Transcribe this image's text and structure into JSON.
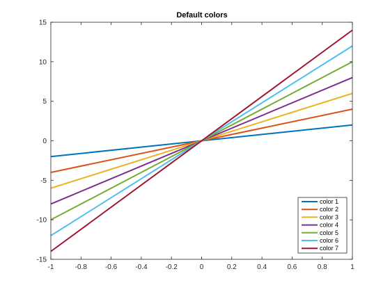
{
  "chart_data": {
    "type": "line",
    "title": "Default colors",
    "xlabel": "",
    "ylabel": "",
    "xlim": [
      -1,
      1
    ],
    "ylim": [
      -15,
      15
    ],
    "x_ticks": [
      -1,
      -0.8,
      -0.6,
      -0.4,
      -0.2,
      0,
      0.2,
      0.4,
      0.6,
      0.8,
      1
    ],
    "x_tick_labels": [
      "-1",
      "-0.8",
      "-0.6",
      "-0.4",
      "-0.2",
      "0",
      "0.2",
      "0.4",
      "0.6",
      "0.8",
      "1"
    ],
    "y_ticks": [
      -15,
      -10,
      -5,
      0,
      5,
      10,
      15
    ],
    "y_tick_labels": [
      "-15",
      "-10",
      "-5",
      "0",
      "5",
      "10",
      "15"
    ],
    "grid": false,
    "legend_position": "bottom-right",
    "x": [
      -1,
      1
    ],
    "series": [
      {
        "name": "color 1",
        "color": "#0072BD",
        "values": [
          -2,
          2
        ]
      },
      {
        "name": "color 2",
        "color": "#D95319",
        "values": [
          -4,
          4
        ]
      },
      {
        "name": "color 3",
        "color": "#EDB120",
        "values": [
          -6,
          6
        ]
      },
      {
        "name": "color 4",
        "color": "#7E2F8E",
        "values": [
          -8,
          8
        ]
      },
      {
        "name": "color 5",
        "color": "#77AC30",
        "values": [
          -10,
          10
        ]
      },
      {
        "name": "color 6",
        "color": "#4DBEEE",
        "values": [
          -12,
          12
        ]
      },
      {
        "name": "color 7",
        "color": "#A2142F",
        "values": [
          -14,
          14
        ]
      }
    ]
  }
}
